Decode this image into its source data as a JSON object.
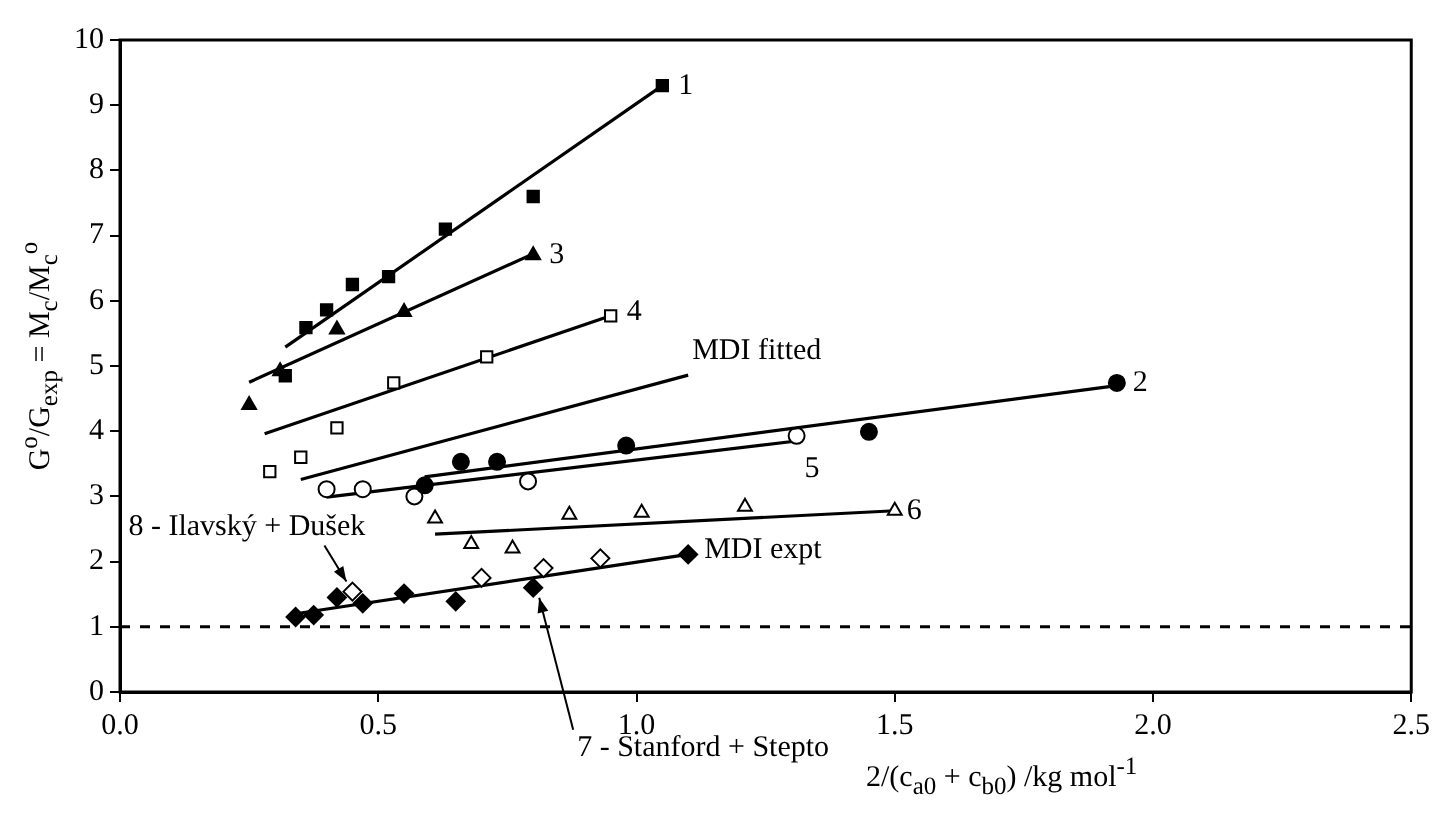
{
  "chart_data": {
    "type": "scatter",
    "xlabel": "2/(c$_{a0}$ + c$_{b0}$) /kg mol$^{-1}$",
    "ylabel": "G$^{o}$/G$_{exp}$ = M$_{c}$/M$_{c}$$^{o}$",
    "xlim": [
      0,
      2.5
    ],
    "xticks": [
      {
        "value": 0,
        "label": "0.0"
      },
      {
        "value": 0.5,
        "label": "0.5"
      },
      {
        "value": 1,
        "label": "1.0"
      },
      {
        "value": 1.5,
        "label": "1.5"
      },
      {
        "value": 2,
        "label": "2.0"
      },
      {
        "value": 2.5,
        "label": "2.5"
      }
    ],
    "ylim": [
      0,
      10
    ],
    "yticks": [
      0,
      1,
      2,
      3,
      4,
      5,
      6,
      7,
      8,
      9,
      10
    ],
    "grid": false,
    "legend": false,
    "series": [
      {
        "type": "scatter",
        "marker": "square",
        "color": "#000000",
        "x": [
          0.36,
          0.4,
          0.45,
          0.52,
          0.63,
          0.8,
          1.05,
          0.32
        ],
        "values": [
          5.59,
          5.86,
          6.25,
          6.37,
          7.1,
          7.6,
          9.3,
          4.85
        ]
      },
      {
        "type": "line",
        "marker": "none",
        "color": "#000000",
        "x": [
          0.32,
          1.05
        ],
        "values": [
          5.29,
          9.3
        ]
      },
      {
        "type": "scatter",
        "marker": "triangle",
        "color": "#000000",
        "x": [
          0.25,
          0.31,
          0.42,
          0.55,
          0.8
        ],
        "values": [
          4.4,
          4.92,
          5.56,
          5.83,
          6.7
        ]
      },
      {
        "type": "line",
        "marker": "none",
        "color": "#000000",
        "x": [
          0.25,
          0.8
        ],
        "values": [
          4.75,
          6.72
        ]
      },
      {
        "type": "scatter",
        "marker": "square",
        "color": "#ffffff",
        "x": [
          0.29,
          0.35,
          0.42,
          0.53,
          0.71,
          0.95
        ],
        "values": [
          3.38,
          3.6,
          4.05,
          4.74,
          5.14,
          5.77
        ]
      },
      {
        "type": "line",
        "marker": "none",
        "color": "#000000",
        "x": [
          0.28,
          0.95
        ],
        "values": [
          3.96,
          5.77
        ]
      },
      {
        "type": "line",
        "marker": "none",
        "color": "#000000",
        "x": [
          0.35,
          1.1
        ],
        "values": [
          3.26,
          4.86
        ]
      },
      {
        "type": "scatter",
        "marker": "circle",
        "color": "#000000",
        "x": [
          0.59,
          0.66,
          0.73,
          0.98,
          1.45,
          1.93
        ],
        "values": [
          3.17,
          3.53,
          3.53,
          3.78,
          3.99,
          4.74
        ]
      },
      {
        "type": "line",
        "marker": "none",
        "color": "#000000",
        "x": [
          0.59,
          1.93
        ],
        "values": [
          3.3,
          4.7
        ]
      },
      {
        "type": "scatter",
        "marker": "circle",
        "color": "#ffffff",
        "x": [
          0.4,
          0.47,
          0.57,
          0.79,
          1.31
        ],
        "values": [
          3.11,
          3.11,
          3.0,
          3.23,
          3.93
        ]
      },
      {
        "type": "line",
        "marker": "none",
        "color": "#000000",
        "x": [
          0.4,
          1.31
        ],
        "values": [
          2.99,
          3.85
        ]
      },
      {
        "type": "scatter",
        "marker": "triangle",
        "color": "#ffffff",
        "x": [
          0.61,
          0.68,
          0.76,
          0.87,
          1.01,
          1.21,
          1.5
        ],
        "values": [
          2.66,
          2.27,
          2.2,
          2.72,
          2.75,
          2.84,
          2.78
        ]
      },
      {
        "type": "line",
        "marker": "none",
        "color": "#000000",
        "x": [
          0.61,
          1.5
        ],
        "values": [
          2.42,
          2.78
        ]
      },
      {
        "type": "scatter",
        "marker": "diamond",
        "color": "#000000",
        "x": [
          0.34,
          0.375,
          0.42,
          0.47,
          0.55,
          0.65,
          0.8,
          1.1
        ],
        "values": [
          1.15,
          1.18,
          1.45,
          1.36,
          1.51,
          1.39,
          1.6,
          2.11
        ]
      },
      {
        "type": "scatter",
        "marker": "diamond",
        "color": "#ffffff",
        "x": [
          0.45,
          0.7,
          0.82,
          0.93
        ],
        "values": [
          1.54,
          1.75,
          1.9,
          2.05
        ]
      },
      {
        "type": "line",
        "marker": "none",
        "color": "#000000",
        "x": [
          0.34,
          1.1
        ],
        "values": [
          1.2,
          2.11
        ]
      }
    ],
    "ref_lines": [
      {
        "axis": "y",
        "value": 1,
        "line_style": "dashed",
        "color": "#000000"
      }
    ],
    "annotations": [
      {
        "text": "1",
        "x": 1.05,
        "y": 9.3
      },
      {
        "text": "2",
        "x": 1.93,
        "y": 4.74
      },
      {
        "text": "3",
        "x": 0.8,
        "y": 6.7
      },
      {
        "text": "4",
        "x": 0.95,
        "y": 5.77
      },
      {
        "text": "5",
        "x": 1.31,
        "y": 3.85
      },
      {
        "text": "6",
        "x": 1.5,
        "y": 2.78
      },
      {
        "text": "MDI fitted",
        "x": 1.1,
        "y": 4.86
      },
      {
        "text": "MDI expt",
        "x": 1.1,
        "y": 2.11
      },
      {
        "text": "7 - Stanford + Stepto",
        "x": 0.8,
        "y": 1.6
      },
      {
        "text": "8 - Ilavský + Dušek",
        "x": 0.45,
        "y": 1.54
      }
    ]
  }
}
